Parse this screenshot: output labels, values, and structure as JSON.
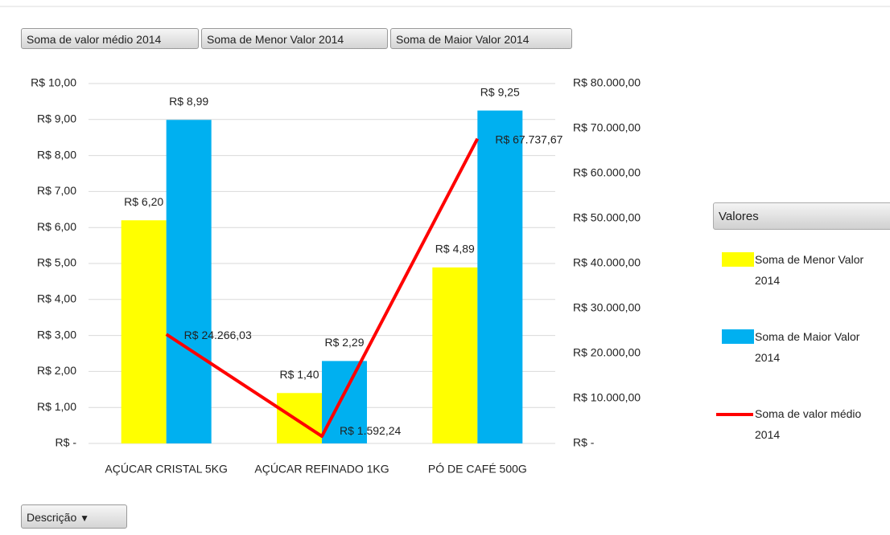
{
  "field_buttons": [
    "Soma de valor médio 2014",
    "Soma de Menor Valor 2014",
    "Soma de Maior Valor 2014"
  ],
  "axis_button": "Descrição",
  "chart_data": {
    "type": "bar",
    "categories": [
      "AÇÚCAR CRISTAL 5KG",
      "AÇÚCAR REFINADO 1KG",
      "PÓ DE CAFÉ 500G"
    ],
    "legend_title": "Valores",
    "legend": "right",
    "grid": true,
    "series": [
      {
        "name": "Soma de Menor Valor 2014",
        "type": "bar",
        "color": "#ffff00",
        "values": [
          6.2,
          1.4,
          4.89
        ],
        "value_labels": [
          "R$ 6,20",
          "R$ 1,40",
          "R$ 4,89"
        ]
      },
      {
        "name": "Soma de Maior Valor 2014",
        "type": "bar",
        "color": "#00b0f0",
        "values": [
          8.99,
          2.29,
          9.25
        ],
        "value_labels": [
          "R$ 8,99",
          "R$ 2,29",
          "R$ 9,25"
        ]
      },
      {
        "name": "Soma de valor médio 2014",
        "type": "line",
        "axis": "y2",
        "color": "#ff0000",
        "values": [
          24266.03,
          1592.24,
          67737.67
        ],
        "value_labels": [
          "R$ 24.266,03",
          "R$ 1.592,24",
          "R$ 67.737,67"
        ]
      }
    ],
    "ylim": [
      0,
      10
    ],
    "yticks": [
      {
        "value": 0,
        "label": "R$ -"
      },
      {
        "value": 1,
        "label": "R$ 1,00"
      },
      {
        "value": 2,
        "label": "R$ 2,00"
      },
      {
        "value": 3,
        "label": "R$ 3,00"
      },
      {
        "value": 4,
        "label": "R$ 4,00"
      },
      {
        "value": 5,
        "label": "R$ 5,00"
      },
      {
        "value": 6,
        "label": "R$ 6,00"
      },
      {
        "value": 7,
        "label": "R$ 7,00"
      },
      {
        "value": 8,
        "label": "R$ 8,00"
      },
      {
        "value": 9,
        "label": "R$ 9,00"
      },
      {
        "value": 10,
        "label": "R$ 10,00"
      }
    ],
    "y2lim": [
      0,
      80000
    ],
    "y2ticks": [
      {
        "value": 0,
        "label": "R$ -"
      },
      {
        "value": 10000,
        "label": "R$ 10.000,00"
      },
      {
        "value": 20000,
        "label": "R$ 20.000,00"
      },
      {
        "value": 30000,
        "label": "R$ 30.000,00"
      },
      {
        "value": 40000,
        "label": "R$ 40.000,00"
      },
      {
        "value": 50000,
        "label": "R$ 50.000,00"
      },
      {
        "value": 60000,
        "label": "R$ 60.000,00"
      },
      {
        "value": 70000,
        "label": "R$ 70.000,00"
      },
      {
        "value": 80000,
        "label": "R$ 80.000,00"
      }
    ]
  }
}
